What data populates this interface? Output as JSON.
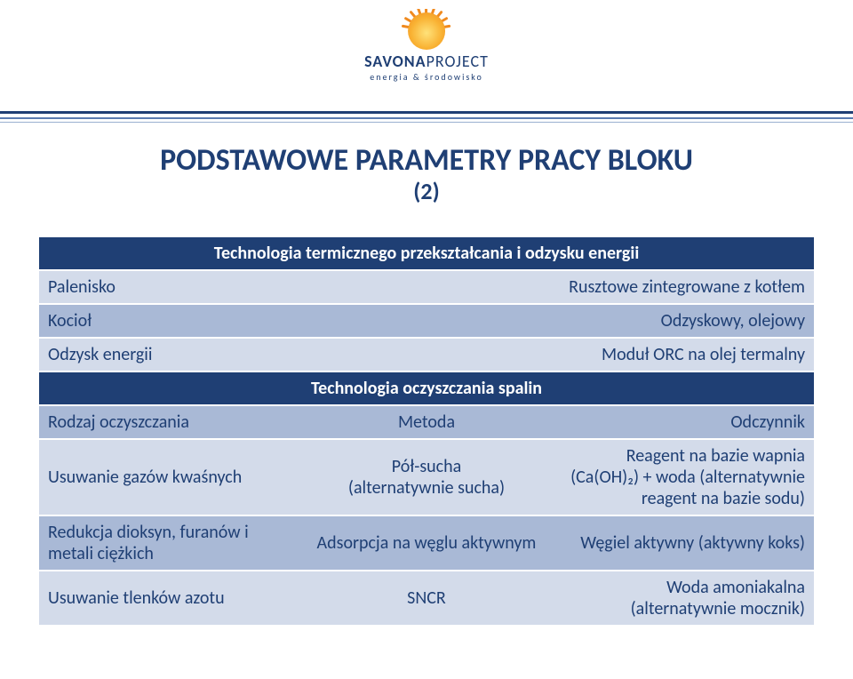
{
  "logo": {
    "brand_bold": "SAVONA",
    "brand_thin": "PROJECT",
    "tagline": "energia & środowisko"
  },
  "title": {
    "main": "PODSTAWOWE PARAMETRY PRACY BLOKU",
    "sub": "(2)"
  },
  "section1": {
    "header": "Technologia termicznego przekształcania i odzysku energii",
    "rows": [
      {
        "left": "Palenisko",
        "right": "Rusztowe zintegrowane z kotłem"
      },
      {
        "left": "Kocioł",
        "right": "Odzyskowy, olejowy"
      },
      {
        "left": "Odzysk energii",
        "right": "Moduł ORC na olej termalny"
      }
    ]
  },
  "section2": {
    "header": "Technologia oczyszczania spalin",
    "columns": {
      "c1": "Rodzaj oczyszczania",
      "c2": "Metoda",
      "c3": "Odczynnik"
    },
    "rows": [
      {
        "c1": "Usuwanie gazów kwaśnych",
        "c2": "Pół-sucha\n(alternatywnie sucha)",
        "c3": "Reagent na bazie wapnia (Ca(OH)₂) + woda (alternatywnie reagent na bazie sodu)"
      },
      {
        "c1": "Redukcja dioksyn, furanów i metali ciężkich",
        "c2": "Adsorpcja na węglu aktywnym",
        "c3": "Węgiel aktywny (aktywny koks)"
      },
      {
        "c1": "Usuwanie tlenków azotu",
        "c2": "SNCR",
        "c3": "Woda amoniakalna (alternatywnie mocznik)"
      }
    ]
  },
  "colors": {
    "brand_navy": "#1f3f74",
    "band_light": "#d3dbea",
    "band_dark": "#a9b9d6",
    "background": "#ffffff"
  }
}
